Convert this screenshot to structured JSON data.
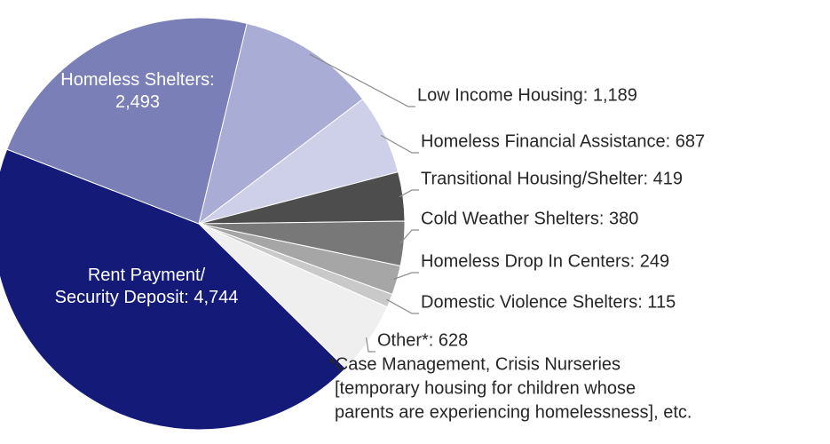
{
  "chart_data": {
    "type": "pie",
    "values": [
      1189,
      687,
      419,
      380,
      249,
      115,
      628,
      4744,
      2493
    ],
    "value_labels": [
      "Low Income Housing: 1,189",
      "Homeless Financial Assistance: 687",
      "Transitional Housing/Shelter: 419",
      "Cold Weather Shelters: 380",
      "Homeless Drop In Centers: 249",
      "Domestic Violence Shelters: 115",
      "Other*: 628",
      "Rent Payment/ Security Deposit: 4,744",
      "Homeless Shelters: 2,493"
    ],
    "colors": [
      "#a9acd4",
      "#cdd0e8",
      "#4d4d4d",
      "#787878",
      "#a6a6a6",
      "#c9c9c9",
      "#efefef",
      "#141a78",
      "#7a7fb8"
    ],
    "note": [
      "*Case Management, Crisis Nurseries",
      "[temporary housing for children whose",
      "parents are experiencing homelessness], etc."
    ]
  }
}
